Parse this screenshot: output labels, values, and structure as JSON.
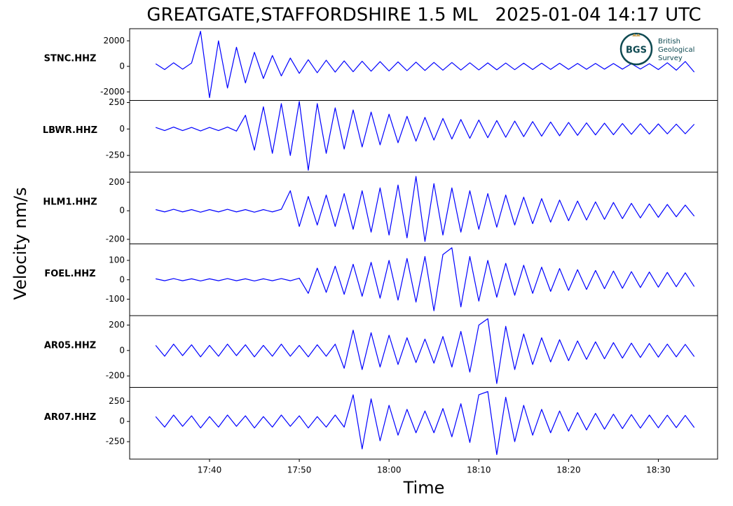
{
  "chart_data": {
    "type": "line",
    "title": "GREATGATE,STAFFORDSHIRE 1.5 ML   2025-01-04 14:17 UTC",
    "xlabel": "Time",
    "ylabel": "Velocity nm/s",
    "color": "#0000ff",
    "x": [
      1054,
      1055,
      1056,
      1057,
      1058,
      1059,
      1060,
      1061,
      1062,
      1063,
      1064,
      1065,
      1066,
      1067,
      1068,
      1069,
      1070,
      1071,
      1072,
      1073,
      1074,
      1075,
      1076,
      1077,
      1078,
      1079,
      1080,
      1081,
      1082,
      1083,
      1084,
      1085,
      1086,
      1087,
      1088,
      1089,
      1090,
      1091,
      1092,
      1093,
      1094,
      1095,
      1096,
      1097,
      1098,
      1099,
      1100,
      1101,
      1102,
      1103,
      1104,
      1105,
      1106,
      1107,
      1108,
      1109,
      1110,
      1111,
      1112,
      1113,
      1114
    ],
    "xlim": [
      1051.1,
      1116.6
    ],
    "xticks": [
      {
        "value": 1060,
        "label": "17:40"
      },
      {
        "value": 1070,
        "label": "17:50"
      },
      {
        "value": 1080,
        "label": "18:00"
      },
      {
        "value": 1090,
        "label": "18:10"
      },
      {
        "value": 1100,
        "label": "18:20"
      },
      {
        "value": 1110,
        "label": "18:30"
      }
    ],
    "series": [
      {
        "name": "STNC.HHZ",
        "ylim": [
          -2670,
          2950
        ],
        "yticks": [
          2000,
          0,
          -2000
        ],
        "values": [
          200,
          -250,
          280,
          -220,
          260,
          2750,
          -2450,
          2000,
          -1700,
          1500,
          -1300,
          1100,
          -950,
          850,
          -750,
          650,
          -550,
          520,
          -500,
          480,
          -450,
          430,
          -420,
          400,
          -380,
          370,
          -360,
          350,
          -340,
          330,
          -320,
          310,
          -300,
          300,
          -290,
          280,
          -280,
          270,
          -270,
          260,
          -260,
          250,
          -250,
          250,
          -240,
          240,
          -240,
          230,
          -230,
          230,
          -220,
          220,
          -220,
          210,
          -210,
          210,
          -250,
          280,
          -300,
          380,
          -450
        ]
      },
      {
        "name": "LBWR.HHZ",
        "ylim": [
          -408,
          270
        ],
        "yticks": [
          250,
          0,
          -250
        ],
        "values": [
          15,
          -15,
          18,
          -15,
          15,
          -18,
          15,
          -15,
          18,
          -20,
          130,
          -200,
          210,
          -230,
          240,
          -250,
          260,
          -390,
          240,
          -230,
          200,
          -190,
          180,
          -170,
          160,
          -150,
          140,
          -130,
          120,
          -115,
          110,
          -105,
          100,
          -95,
          90,
          -88,
          85,
          -82,
          80,
          -78,
          75,
          -72,
          70,
          -68,
          66,
          -64,
          62,
          -60,
          58,
          -56,
          55,
          -54,
          52,
          -50,
          50,
          -48,
          48,
          -46,
          46,
          -45,
          45
        ]
      },
      {
        "name": "HLM1.HHZ",
        "ylim": [
          -232,
          270
        ],
        "yticks": [
          200,
          0,
          -200
        ],
        "values": [
          8,
          -8,
          10,
          -8,
          8,
          -10,
          8,
          -8,
          10,
          -8,
          8,
          -10,
          8,
          -8,
          10,
          140,
          -110,
          100,
          -100,
          110,
          -110,
          120,
          -130,
          140,
          -150,
          160,
          -170,
          180,
          -190,
          240,
          -215,
          190,
          -170,
          160,
          -150,
          140,
          -130,
          120,
          -115,
          110,
          -100,
          95,
          -90,
          85,
          -80,
          75,
          -70,
          68,
          -65,
          62,
          -60,
          58,
          -55,
          52,
          -50,
          48,
          -46,
          44,
          -42,
          40,
          -38
        ]
      },
      {
        "name": "FOEL.HHZ",
        "ylim": [
          -185,
          185
        ],
        "yticks": [
          100,
          0,
          -100
        ],
        "values": [
          5,
          -5,
          6,
          -5,
          5,
          -6,
          5,
          -5,
          6,
          -5,
          5,
          -6,
          5,
          -5,
          6,
          -5,
          8,
          -70,
          60,
          -65,
          70,
          -75,
          80,
          -85,
          90,
          -95,
          100,
          -105,
          110,
          -115,
          120,
          -160,
          130,
          165,
          -140,
          120,
          -110,
          100,
          -90,
          85,
          -80,
          75,
          -70,
          65,
          -60,
          58,
          -55,
          52,
          -50,
          48,
          -46,
          45,
          -44,
          42,
          -40,
          40,
          -38,
          38,
          -36,
          36,
          -35
        ]
      },
      {
        "name": "AR05.HHZ",
        "ylim": [
          -290,
          274
        ],
        "yticks": [
          200,
          0,
          -200
        ],
        "values": [
          40,
          -45,
          50,
          -40,
          45,
          -50,
          40,
          -45,
          50,
          -40,
          45,
          -50,
          40,
          -45,
          50,
          -45,
          40,
          -50,
          45,
          -45,
          50,
          -140,
          160,
          -150,
          140,
          -130,
          120,
          -110,
          100,
          -95,
          90,
          -100,
          110,
          -130,
          150,
          -170,
          200,
          250,
          -260,
          190,
          -150,
          130,
          -110,
          100,
          -90,
          85,
          -80,
          75,
          -70,
          68,
          -65,
          62,
          -60,
          58,
          -55,
          55,
          -52,
          50,
          -50,
          48,
          -48
        ]
      },
      {
        "name": "AR07.HHZ",
        "ylim": [
          -466,
          422
        ],
        "yticks": [
          250,
          0,
          -250
        ],
        "values": [
          60,
          -70,
          80,
          -60,
          70,
          -80,
          60,
          -70,
          80,
          -60,
          70,
          -80,
          60,
          -70,
          80,
          -60,
          70,
          -80,
          60,
          -70,
          80,
          -70,
          330,
          -340,
          280,
          -240,
          200,
          -170,
          150,
          -140,
          130,
          -140,
          160,
          -190,
          220,
          -260,
          330,
          370,
          -410,
          300,
          -250,
          200,
          -170,
          150,
          -140,
          130,
          -120,
          110,
          -105,
          100,
          -95,
          90,
          -88,
          85,
          -82,
          80,
          -78,
          78,
          -76,
          75,
          -75
        ]
      }
    ]
  },
  "logo": {
    "abbr": "BGS",
    "lines": [
      "British",
      "Geological",
      "Survey"
    ]
  }
}
